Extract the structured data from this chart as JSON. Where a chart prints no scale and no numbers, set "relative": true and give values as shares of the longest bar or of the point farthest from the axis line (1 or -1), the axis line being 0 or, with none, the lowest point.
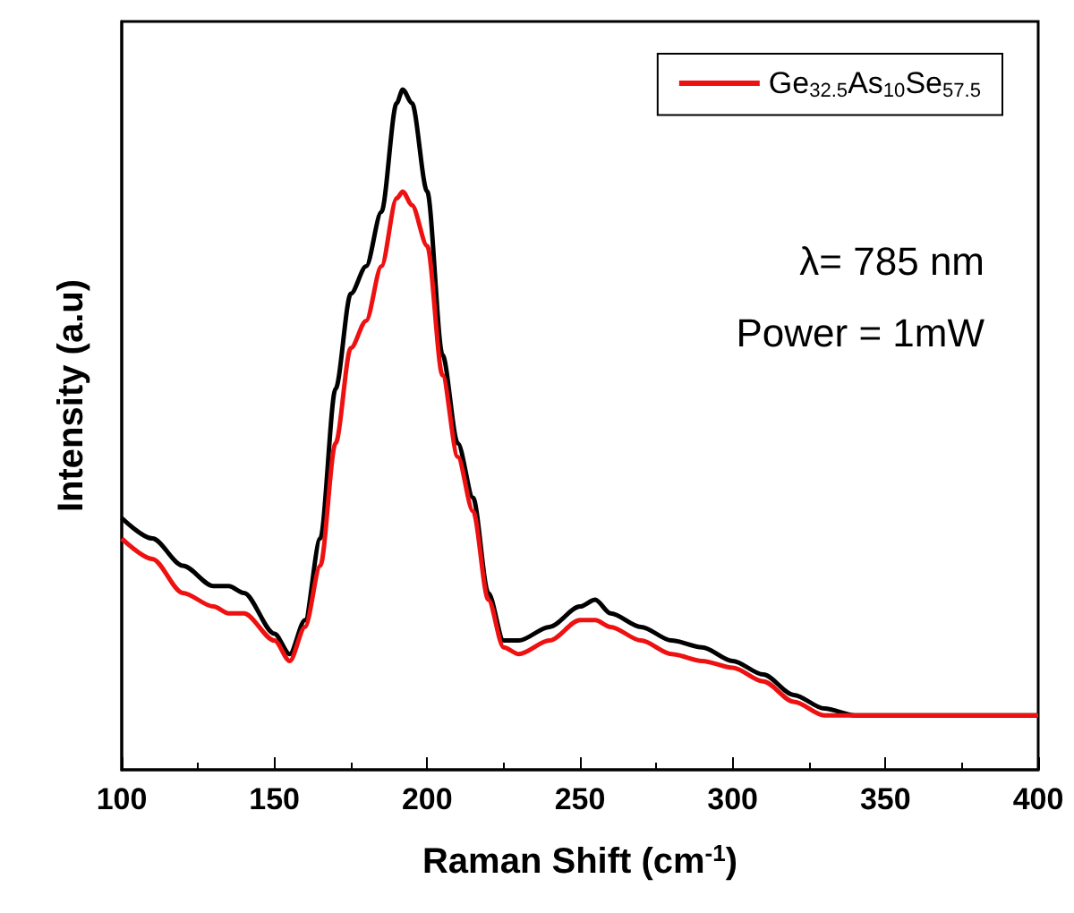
{
  "chart_data": {
    "type": "line",
    "relative": true,
    "xlabel": "Raman Shift (cm$^{-1}$)",
    "ylabel": "Intensity (a.u)",
    "x": [
      100,
      110,
      120,
      130,
      135,
      140,
      150,
      155,
      160,
      165,
      170,
      175,
      180,
      185,
      190,
      192,
      195,
      200,
      205,
      210,
      215,
      220,
      225,
      230,
      240,
      250,
      255,
      260,
      270,
      280,
      290,
      300,
      310,
      320,
      330,
      340,
      400
    ],
    "xlim": [
      100,
      400
    ],
    "xticks": [
      100,
      150,
      200,
      250,
      300,
      350,
      400
    ],
    "series": [
      {
        "color": "#000000",
        "values": [
          0.37,
          0.34,
          0.3,
          0.27,
          0.27,
          0.26,
          0.2,
          0.17,
          0.22,
          0.34,
          0.56,
          0.7,
          0.74,
          0.82,
          0.98,
          1.0,
          0.98,
          0.85,
          0.61,
          0.48,
          0.4,
          0.26,
          0.19,
          0.19,
          0.21,
          0.24,
          0.25,
          0.23,
          0.21,
          0.19,
          0.18,
          0.16,
          0.14,
          0.11,
          0.09,
          0.08,
          0.08
        ]
      },
      {
        "name": "Ge$_{32.5}$As$_{10}$Se$_{57.5}$",
        "color": "#ee1111",
        "values": [
          0.34,
          0.31,
          0.26,
          0.24,
          0.23,
          0.23,
          0.19,
          0.16,
          0.21,
          0.3,
          0.48,
          0.62,
          0.66,
          0.74,
          0.84,
          0.85,
          0.83,
          0.77,
          0.58,
          0.46,
          0.38,
          0.25,
          0.18,
          0.17,
          0.19,
          0.22,
          0.22,
          0.21,
          0.19,
          0.17,
          0.16,
          0.15,
          0.13,
          0.1,
          0.08,
          0.08,
          0.08
        ]
      }
    ],
    "annotations": [
      "λ= 785 nm",
      "Power = 1mW"
    ],
    "legend": "top right",
    "grid": false,
    "marker": "none",
    "line_style": "solid"
  }
}
